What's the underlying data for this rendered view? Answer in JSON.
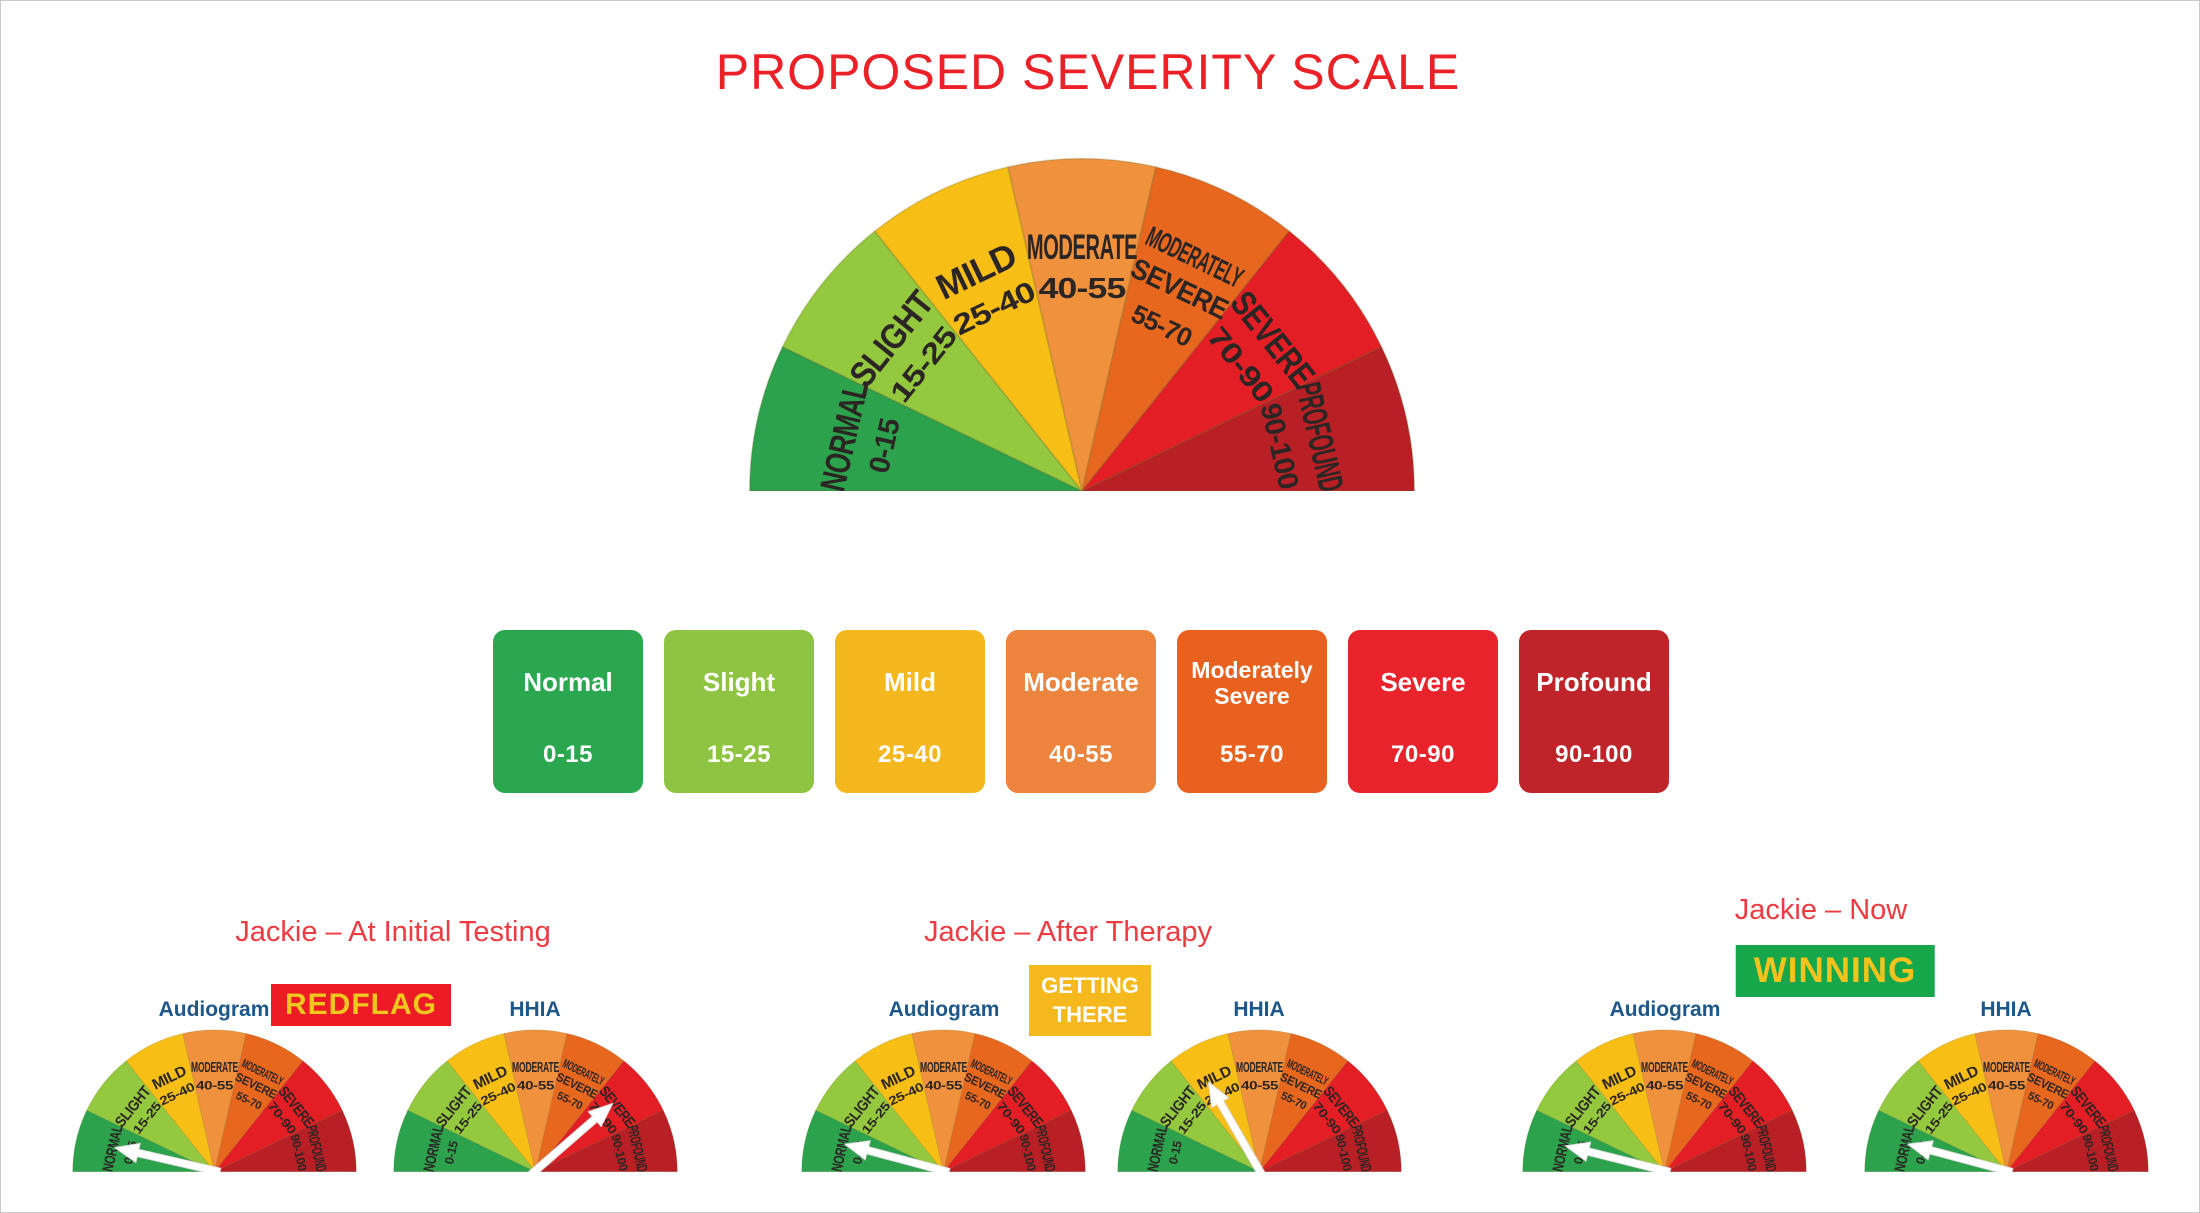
{
  "page": {
    "title": "PROPOSED SEVERITY SCALE"
  },
  "colors": {
    "title_red": "#EC2127",
    "section_title_red": "#EE3A40",
    "gauge_label_blue": "#1E578A",
    "segment_text": "#2B2523",
    "arrow_white": "#FFFFFF"
  },
  "gauge_segments": [
    {
      "label": "NORMAL",
      "range": "0-15",
      "color": "#2CA24C"
    },
    {
      "label": "SLIGHT",
      "range": "15-25",
      "color": "#94C83F"
    },
    {
      "label": "MILD",
      "range": "25-40",
      "color": "#F7BE16"
    },
    {
      "label": "MODERATE",
      "range": "40-55",
      "color": "#F0913E"
    },
    {
      "label": "MODERATELY SEVERE",
      "lines": [
        "MODERATELY",
        "SEVERE"
      ],
      "range": "55-70",
      "color": "#E7671F"
    },
    {
      "label": "SEVERE",
      "range": "70-90",
      "color": "#E31E25"
    },
    {
      "label": "PROFOUND",
      "range": "90-100",
      "color": "#B92025"
    }
  ],
  "cards": [
    {
      "label": "Normal",
      "range": "0-15",
      "color": "#2BA84F"
    },
    {
      "label": "Slight",
      "range": "15-25",
      "color": "#8EC441"
    },
    {
      "label": "Mild",
      "range": "25-40",
      "color": "#F4B71D"
    },
    {
      "label": "Moderate",
      "range": "40-55",
      "color": "#EC843E"
    },
    {
      "label": "Moderately Severe",
      "range": "55-70",
      "color": "#E8611E"
    },
    {
      "label": "Severe",
      "range": "70-90",
      "color": "#E8232B"
    },
    {
      "label": "Profound",
      "range": "90-100",
      "color": "#BE2429"
    }
  ],
  "sections": [
    {
      "title": "Jackie – At Initial Testing",
      "badge": {
        "text": "REDFLAG",
        "bg": "#EC1B24",
        "fg": "#F0C71F"
      },
      "gauges": [
        {
          "label": "Audiogram",
          "arrow_angle_deg": 167,
          "arrow_segment": "NORMAL"
        },
        {
          "label": "HHIA",
          "arrow_angle_deg": 41,
          "arrow_segment": "SEVERE"
        }
      ]
    },
    {
      "title": "Jackie – After Therapy",
      "badge": {
        "text": "GETTING THERE",
        "bg": "#F5B91D",
        "fg": "#FFFFFF"
      },
      "gauges": [
        {
          "label": "Audiogram",
          "arrow_angle_deg": 165,
          "arrow_segment": "NORMAL"
        },
        {
          "label": "HHIA",
          "arrow_angle_deg": 120,
          "arrow_segment": "MILD"
        }
      ]
    },
    {
      "title": "Jackie – Now",
      "badge": {
        "text": "WINNING",
        "bg": "#17A74B",
        "fg": "#F4C21D"
      },
      "gauges": [
        {
          "label": "Audiogram",
          "arrow_angle_deg": 166,
          "arrow_segment": "NORMAL"
        },
        {
          "label": "HHIA",
          "arrow_angle_deg": 165,
          "arrow_segment": "NORMAL"
        }
      ]
    }
  ]
}
